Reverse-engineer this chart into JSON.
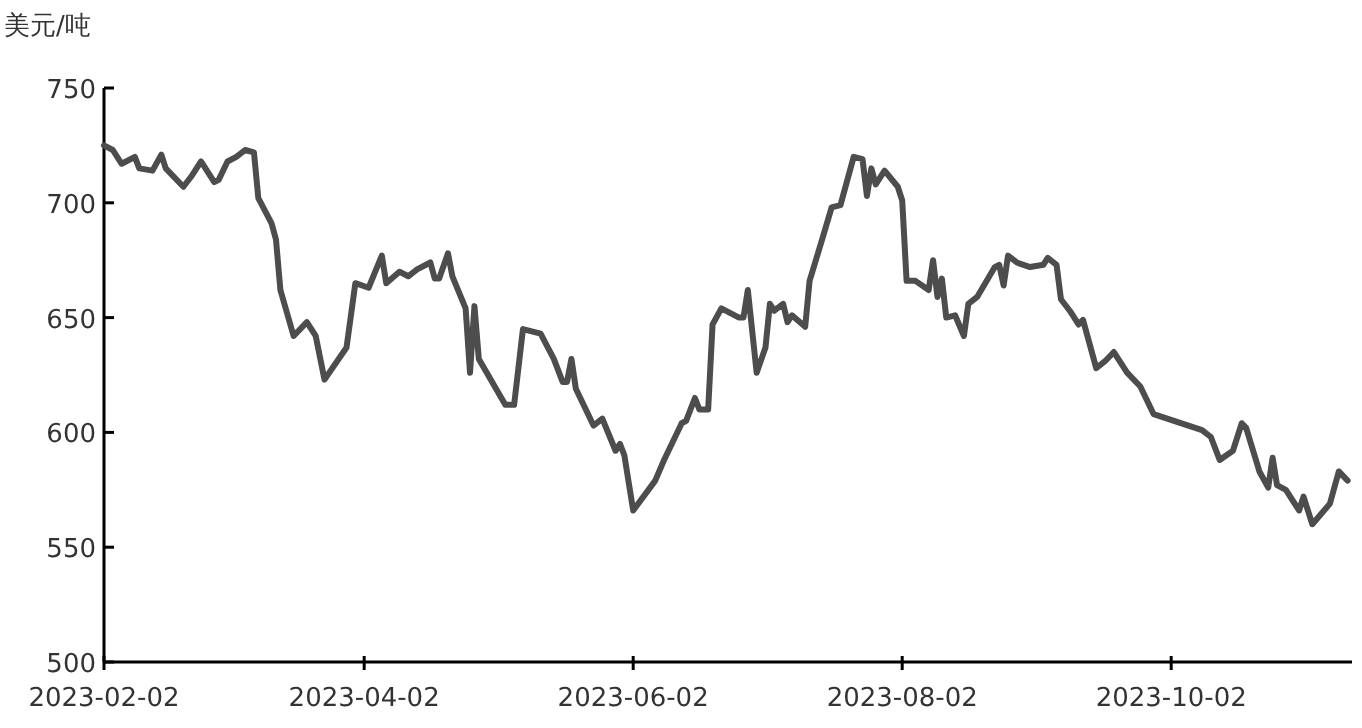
{
  "chart_data": {
    "type": "line",
    "ylabel": "美元/吨",
    "xlim": [
      "2023-02-02",
      "2023-11-12"
    ],
    "xticks": [
      "2023-02-02",
      "2023-04-02",
      "2023-06-02",
      "2023-08-02",
      "2023-10-02"
    ],
    "ylim": [
      500,
      750
    ],
    "yticks": [
      500,
      550,
      600,
      650,
      700,
      750
    ],
    "grid": false,
    "marker": "none",
    "line_style": "solid",
    "series": [
      {
        "color": "#4d4d4d",
        "x": [
          "2023-02-02",
          "2023-02-04",
          "2023-02-06",
          "2023-02-09",
          "2023-02-10",
          "2023-02-13",
          "2023-02-15",
          "2023-02-16",
          "2023-02-20",
          "2023-02-22",
          "2023-02-24",
          "2023-02-27",
          "2023-02-28",
          "2023-03-02",
          "2023-03-04",
          "2023-03-06",
          "2023-03-08",
          "2023-03-09",
          "2023-03-12",
          "2023-03-13",
          "2023-03-14",
          "2023-03-17",
          "2023-03-20",
          "2023-03-22",
          "2023-03-24",
          "2023-03-29",
          "2023-03-31",
          "2023-04-03",
          "2023-04-06",
          "2023-04-07",
          "2023-04-10",
          "2023-04-12",
          "2023-04-14",
          "2023-04-17",
          "2023-04-18",
          "2023-04-19",
          "2023-04-21",
          "2023-04-22",
          "2023-04-25",
          "2023-04-26",
          "2023-04-27",
          "2023-04-28",
          "2023-05-04",
          "2023-05-06",
          "2023-05-08",
          "2023-05-12",
          "2023-05-15",
          "2023-05-17",
          "2023-05-18",
          "2023-05-19",
          "2023-05-20",
          "2023-05-24",
          "2023-05-26",
          "2023-05-29",
          "2023-05-30",
          "2023-05-31",
          "2023-06-02",
          "2023-06-07",
          "2023-06-09",
          "2023-06-13",
          "2023-06-14",
          "2023-06-16",
          "2023-06-17",
          "2023-06-19",
          "2023-06-20",
          "2023-06-22",
          "2023-06-26",
          "2023-06-27",
          "2023-06-28",
          "2023-06-30",
          "2023-07-02",
          "2023-07-03",
          "2023-07-04",
          "2023-07-06",
          "2023-07-07",
          "2023-07-08",
          "2023-07-11",
          "2023-07-12",
          "2023-07-15",
          "2023-07-17",
          "2023-07-19",
          "2023-07-22",
          "2023-07-24",
          "2023-07-25",
          "2023-07-26",
          "2023-07-27",
          "2023-07-29",
          "2023-08-01",
          "2023-08-02",
          "2023-08-03",
          "2023-08-05",
          "2023-08-08",
          "2023-08-09",
          "2023-08-10",
          "2023-08-11",
          "2023-08-12",
          "2023-08-14",
          "2023-08-16",
          "2023-08-17",
          "2023-08-19",
          "2023-08-23",
          "2023-08-24",
          "2023-08-25",
          "2023-08-26",
          "2023-08-28",
          "2023-08-31",
          "2023-09-03",
          "2023-09-04",
          "2023-09-06",
          "2023-09-07",
          "2023-09-09",
          "2023-09-11",
          "2023-09-12",
          "2023-09-15",
          "2023-09-17",
          "2023-09-19",
          "2023-09-22",
          "2023-09-25",
          "2023-09-28",
          "2023-10-09",
          "2023-10-11",
          "2023-10-13",
          "2023-10-16",
          "2023-10-18",
          "2023-10-19",
          "2023-10-22",
          "2023-10-24",
          "2023-10-25",
          "2023-10-26",
          "2023-10-28",
          "2023-10-31",
          "2023-11-01",
          "2023-11-03",
          "2023-11-07",
          "2023-11-09",
          "2023-11-11"
        ],
        "values": [
          725,
          723,
          717,
          720,
          715,
          714,
          721,
          715,
          707,
          712,
          718,
          709,
          710,
          718,
          720,
          723,
          722,
          702,
          691,
          684,
          662,
          642,
          648,
          642,
          623,
          637,
          665,
          663,
          677,
          665,
          670,
          668,
          671,
          674,
          667,
          667,
          678,
          668,
          654,
          626,
          655,
          632,
          612,
          612,
          645,
          643,
          632,
          622,
          622,
          632,
          619,
          603,
          606,
          592,
          595,
          590,
          566,
          579,
          588,
          604,
          605,
          615,
          610,
          610,
          647,
          654,
          650,
          650,
          662,
          626,
          637,
          656,
          653,
          656,
          648,
          651,
          646,
          666,
          685,
          698,
          699,
          720,
          719,
          703,
          715,
          708,
          714,
          707,
          701,
          666,
          666,
          662,
          675,
          659,
          667,
          650,
          651,
          642,
          656,
          659,
          672,
          673,
          664,
          677,
          674,
          672,
          673,
          676,
          673,
          658,
          653,
          647,
          649,
          628,
          631,
          635,
          626,
          620,
          608,
          601,
          598,
          588,
          592,
          604,
          602,
          583,
          576,
          589,
          577,
          575,
          566,
          572,
          560,
          569,
          583,
          579
        ]
      }
    ]
  }
}
